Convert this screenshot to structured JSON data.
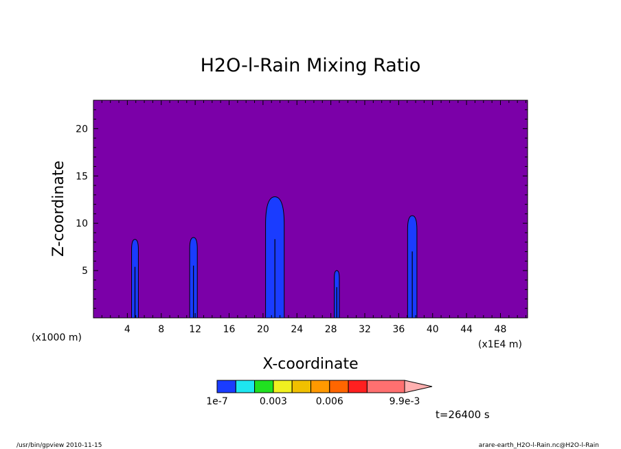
{
  "chart_data": {
    "type": "heatmap",
    "title": "H2O-l-Rain Mixing Ratio",
    "xlabel": "X-coordinate",
    "ylabel": "Z-coordinate",
    "x_unit_left": "(x1000 m)",
    "x_unit_right": "(x1E4 m)",
    "xlim": [
      0,
      51.2
    ],
    "ylim": [
      0,
      23
    ],
    "x_ticks": [
      4,
      8,
      12,
      16,
      20,
      24,
      28,
      32,
      36,
      40,
      44,
      48
    ],
    "y_ticks": [
      5,
      10,
      15,
      20
    ],
    "background_color": "#7b00a8",
    "features": [
      {
        "x_center": 4.9,
        "half_width": 0.4,
        "top": 8.3,
        "color": "#1a3cff"
      },
      {
        "x_center": 11.8,
        "half_width": 0.45,
        "top": 8.5,
        "color": "#1a3cff"
      },
      {
        "x_center": 21.4,
        "half_width": 1.1,
        "top": 12.8,
        "color": "#1a3cff"
      },
      {
        "x_center": 28.7,
        "half_width": 0.3,
        "top": 5.0,
        "color": "#1a3cff"
      },
      {
        "x_center": 37.6,
        "half_width": 0.55,
        "top": 10.8,
        "color": "#1a3cff"
      }
    ],
    "colorbar": {
      "colors": [
        "#1a3cff",
        "#1ee6f0",
        "#20e020",
        "#f0f020",
        "#f0c000",
        "#ff9900",
        "#ff6600",
        "#ff2020",
        "#ff7070",
        "#ffb0b0"
      ],
      "tick_labels": [
        "1e-7",
        "0.003",
        "0.006",
        "9.9e-3"
      ]
    },
    "time_label": "t=26400 s",
    "footer_left": "/usr/bin/gpview   2010-11-15",
    "footer_right": "arare-earth_H2O-l-Rain.nc@H2O-l-Rain"
  }
}
